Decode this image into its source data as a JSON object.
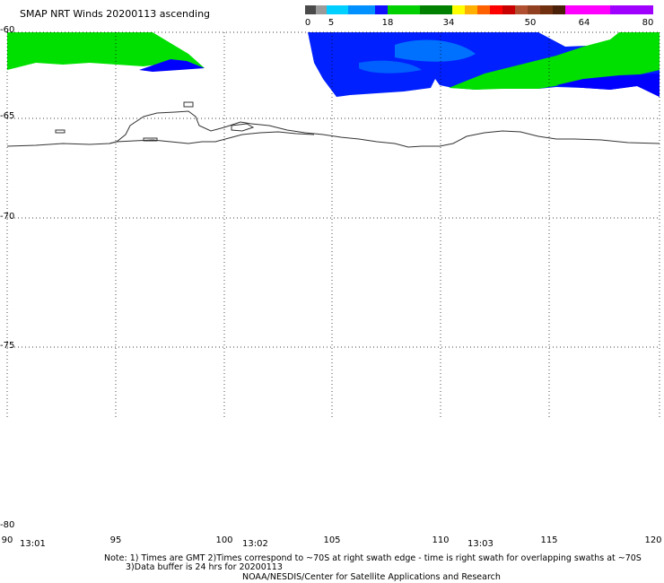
{
  "title": "SMAP NRT Winds 20200113 ascending",
  "colorbar": {
    "labels": [
      "0",
      "5",
      "18",
      "34",
      "50",
      "64",
      "80"
    ],
    "segments": [
      "#4a4a4a",
      "#9a9a9a",
      "#00cfff",
      "#0090ff",
      "#1010ff",
      "#00d000",
      "#008000",
      "#ffff00",
      "#ff9000",
      "#ff4000",
      "#ff0000",
      "#c00000",
      "#a0522d",
      "#703010",
      "#ff00ff",
      "#a000ff"
    ]
  },
  "lat_labels": [
    "-60",
    "-65",
    "-70",
    "-75",
    "-80"
  ],
  "lon_labels": [
    "90",
    "95",
    "100",
    "105",
    "110",
    "115",
    "120"
  ],
  "time_labels": [
    "13:01",
    "13:02",
    "13:03"
  ],
  "notes": {
    "line1": "Note: 1) Times are GMT 2)Times correspond to ~70S at right swath edge - time is right swath for overlapping swaths at ~70S",
    "line2": "3)Data buffer is 24 hrs for 20200113",
    "line3": "NOAA/NESDIS/Center for Satellite Applications and Research"
  }
}
